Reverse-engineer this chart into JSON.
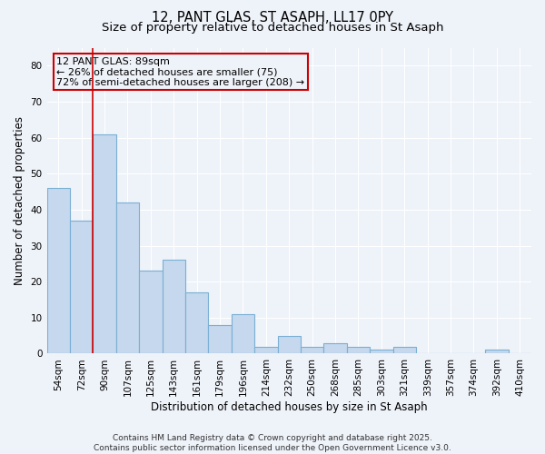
{
  "title_line1": "12, PANT GLAS, ST ASAPH, LL17 0PY",
  "title_line2": "Size of property relative to detached houses in St Asaph",
  "xlabel": "Distribution of detached houses by size in St Asaph",
  "ylabel": "Number of detached properties",
  "categories": [
    "54sqm",
    "72sqm",
    "90sqm",
    "107sqm",
    "125sqm",
    "143sqm",
    "161sqm",
    "179sqm",
    "196sqm",
    "214sqm",
    "232sqm",
    "250sqm",
    "268sqm",
    "285sqm",
    "303sqm",
    "321sqm",
    "339sqm",
    "357sqm",
    "374sqm",
    "392sqm",
    "410sqm"
  ],
  "values": [
    46,
    37,
    61,
    42,
    23,
    26,
    17,
    8,
    11,
    2,
    5,
    2,
    3,
    2,
    1,
    2,
    0,
    0,
    0,
    1,
    0
  ],
  "bar_color": "#c5d8ed",
  "bar_edge_color": "#7aafd4",
  "vline_x_index": 2,
  "annotation_text_line1": "12 PANT GLAS: 89sqm",
  "annotation_text_line2": "← 26% of detached houses are smaller (75)",
  "annotation_text_line3": "72% of semi-detached houses are larger (208) →",
  "vline_color": "#cc0000",
  "box_edge_color": "#cc0000",
  "ylim": [
    0,
    85
  ],
  "yticks": [
    0,
    10,
    20,
    30,
    40,
    50,
    60,
    70,
    80
  ],
  "footer_line1": "Contains HM Land Registry data © Crown copyright and database right 2025.",
  "footer_line2": "Contains public sector information licensed under the Open Government Licence v3.0.",
  "bg_color": "#eef2f9",
  "plot_bg_color": "#eef2f9",
  "grid_color": "#ffffff",
  "title_fontsize": 10.5,
  "subtitle_fontsize": 9.5,
  "axis_label_fontsize": 8.5,
  "tick_fontsize": 7.5,
  "annotation_fontsize": 8,
  "footer_fontsize": 6.5
}
